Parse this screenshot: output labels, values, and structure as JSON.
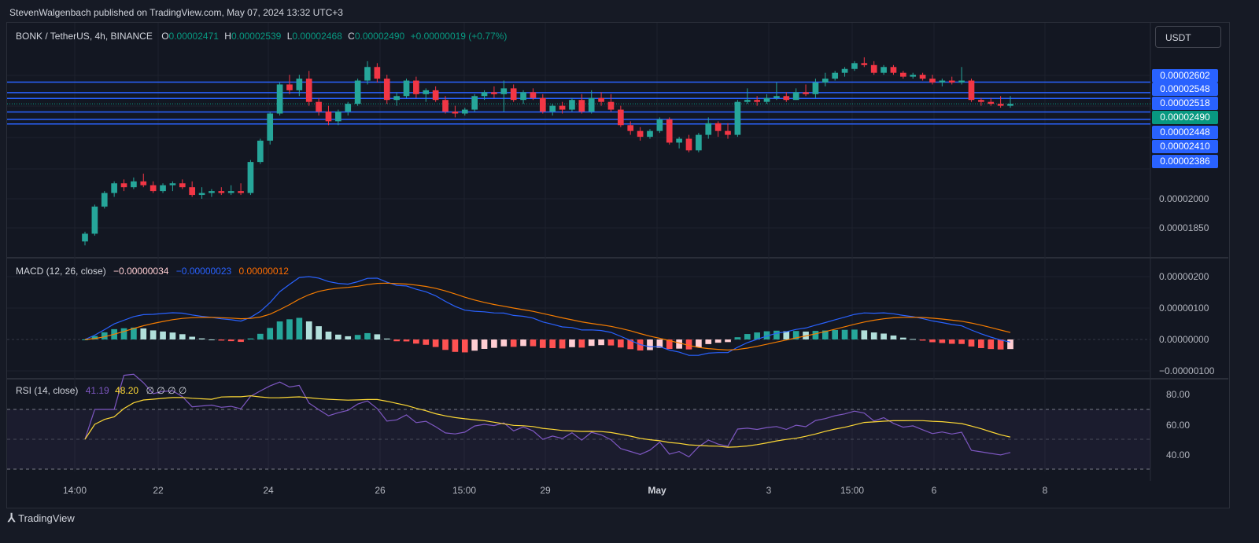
{
  "header": {
    "published": "StevenWalgenbach published on TradingView.com, May 07, 2024 13:32 UTC+3"
  },
  "symbol": {
    "name": "BONK / TetherUS, 4h, BINANCE",
    "o_label": "O",
    "open": "0.00002471",
    "h_label": "H",
    "high": "0.00002539",
    "l_label": "L",
    "low": "0.00002468",
    "c_label": "C",
    "close": "0.00002490",
    "change": "+0.00000019 (+0.77%)"
  },
  "currency_button": "USDT",
  "price_scale": {
    "tags": [
      {
        "value": "0.00002602",
        "color": "#2962ff"
      },
      {
        "value": "0.00002548",
        "color": "#2962ff"
      },
      {
        "value": "0.00002518",
        "color": "#2962ff"
      },
      {
        "value": "0.00002490",
        "color": "#089981"
      },
      {
        "value": "0.00002448",
        "color": "#2962ff"
      },
      {
        "value": "0.00002410",
        "color": "#2962ff"
      },
      {
        "value": "0.00002386",
        "color": "#2962ff"
      }
    ],
    "labels": [
      "0.00002000",
      "0.00001850"
    ]
  },
  "macd": {
    "title": "MACD (12, 26, close)",
    "hist": "−0.00000034",
    "macd": "−0.00000023",
    "signal": "0.00000012",
    "scale": [
      "0.00000200",
      "0.00000100",
      "0.00000000",
      "−0.00000100"
    ]
  },
  "rsi": {
    "title": "RSI (14, close)",
    "rsi": "41.19",
    "ma": "48.20",
    "extra": "∅ ∅ ∅ ∅",
    "scale": [
      "80.00",
      "60.00",
      "40.00"
    ]
  },
  "time_axis": [
    "14:00",
    "22",
    "24",
    "26",
    "15:00",
    "29",
    "May",
    "3",
    "15:00",
    "6",
    "8"
  ],
  "brand": "TradingView",
  "colors": {
    "up": "#26a69a",
    "down": "#f23645",
    "macd": "#2962ff",
    "signal": "#f57c00",
    "rsi": "#7e57c2",
    "rsi_ma": "#fdd835"
  },
  "chart_data": {
    "type": "candlestick",
    "symbol": "BONK / TetherUS",
    "interval": "4h",
    "horizontal_levels": [
      2.602e-05,
      2.548e-05,
      2.518e-05,
      2.448e-05,
      2.41e-05,
      2.386e-05
    ],
    "last_price": 2.49e-05,
    "candles": [
      [
        1.78e-05,
        1.83e-05,
        1.76e-05,
        1.82e-05
      ],
      [
        1.82e-05,
        1.97e-05,
        1.81e-05,
        1.96e-05
      ],
      [
        1.96e-05,
        2.04e-05,
        1.95e-05,
        2.03e-05
      ],
      [
        2.03e-05,
        2.09e-05,
        2.01e-05,
        2.08e-05
      ],
      [
        2.08e-05,
        2.1e-05,
        2.04e-05,
        2.06e-05
      ],
      [
        2.06e-05,
        2.11e-05,
        2.05e-05,
        2.09e-05
      ],
      [
        2.09e-05,
        2.13e-05,
        2.06e-05,
        2.07e-05
      ],
      [
        2.07e-05,
        2.09e-05,
        2.03e-05,
        2.04e-05
      ],
      [
        2.04e-05,
        2.08e-05,
        2.03e-05,
        2.07e-05
      ],
      [
        2.07e-05,
        2.09e-05,
        2.04e-05,
        2.08e-05
      ],
      [
        2.08e-05,
        2.1e-05,
        2.05e-05,
        2.06e-05
      ],
      [
        2.06e-05,
        2.09e-05,
        2.01e-05,
        2.02e-05
      ],
      [
        2.02e-05,
        2.06e-05,
        2e-05,
        2.03e-05
      ],
      [
        2.03e-05,
        2.05e-05,
        2.01e-05,
        2.04e-05
      ],
      [
        2.04e-05,
        2.06e-05,
        2.02e-05,
        2.03e-05
      ],
      [
        2.03e-05,
        2.07e-05,
        2.02e-05,
        2.04e-05
      ],
      [
        2.04e-05,
        2.08e-05,
        2.02e-05,
        2.03e-05
      ],
      [
        2.03e-05,
        2.2e-05,
        2.02e-05,
        2.19e-05
      ],
      [
        2.19e-05,
        2.31e-05,
        2.18e-05,
        2.3e-05
      ],
      [
        2.3e-05,
        2.45e-05,
        2.28e-05,
        2.44e-05
      ],
      [
        2.44e-05,
        2.6e-05,
        2.43e-05,
        2.59e-05
      ],
      [
        2.59e-05,
        2.64e-05,
        2.54e-05,
        2.56e-05
      ],
      [
        2.56e-05,
        2.64e-05,
        2.53e-05,
        2.62e-05
      ],
      [
        2.62e-05,
        2.66e-05,
        2.48e-05,
        2.5e-05
      ],
      [
        2.5e-05,
        2.52e-05,
        2.43e-05,
        2.45e-05
      ],
      [
        2.45e-05,
        2.48e-05,
        2.38e-05,
        2.4e-05
      ],
      [
        2.4e-05,
        2.46e-05,
        2.38e-05,
        2.45e-05
      ],
      [
        2.45e-05,
        2.5e-05,
        2.43e-05,
        2.49e-05
      ],
      [
        2.49e-05,
        2.62e-05,
        2.48e-05,
        2.61e-05
      ],
      [
        2.61e-05,
        2.71e-05,
        2.59e-05,
        2.68e-05
      ],
      [
        2.68e-05,
        2.7e-05,
        2.6e-05,
        2.62e-05
      ],
      [
        2.62e-05,
        2.64e-05,
        2.49e-05,
        2.51e-05
      ],
      [
        2.51e-05,
        2.55e-05,
        2.48e-05,
        2.53e-05
      ],
      [
        2.53e-05,
        2.62e-05,
        2.52e-05,
        2.61e-05
      ],
      [
        2.61e-05,
        2.63e-05,
        2.52e-05,
        2.54e-05
      ],
      [
        2.54e-05,
        2.57e-05,
        2.5e-05,
        2.56e-05
      ],
      [
        2.56e-05,
        2.58e-05,
        2.5e-05,
        2.51e-05
      ],
      [
        2.51e-05,
        2.53e-05,
        2.44e-05,
        2.45e-05
      ],
      [
        2.45e-05,
        2.48e-05,
        2.42e-05,
        2.44e-05
      ],
      [
        2.44e-05,
        2.47e-05,
        2.43e-05,
        2.46e-05
      ],
      [
        2.46e-05,
        2.54e-05,
        2.45e-05,
        2.53e-05
      ],
      [
        2.53e-05,
        2.56e-05,
        2.51e-05,
        2.55e-05
      ],
      [
        2.55e-05,
        2.58e-05,
        2.52e-05,
        2.54e-05
      ],
      [
        2.54e-05,
        2.61e-05,
        2.45e-05,
        2.57e-05
      ],
      [
        2.57e-05,
        2.59e-05,
        2.5e-05,
        2.51e-05
      ],
      [
        2.51e-05,
        2.56e-05,
        2.49e-05,
        2.55e-05
      ],
      [
        2.55e-05,
        2.57e-05,
        2.51e-05,
        2.52e-05
      ],
      [
        2.52e-05,
        2.54e-05,
        2.44e-05,
        2.45e-05
      ],
      [
        2.45e-05,
        2.49e-05,
        2.43e-05,
        2.48e-05
      ],
      [
        2.48e-05,
        2.5e-05,
        2.44e-05,
        2.46e-05
      ],
      [
        2.46e-05,
        2.52e-05,
        2.45e-05,
        2.51e-05
      ],
      [
        2.51e-05,
        2.54e-05,
        2.44e-05,
        2.45e-05
      ],
      [
        2.45e-05,
        2.56e-05,
        2.44e-05,
        2.52e-05
      ],
      [
        2.52e-05,
        2.55e-05,
        2.48e-05,
        2.5e-05
      ],
      [
        2.5e-05,
        2.54e-05,
        2.45e-05,
        2.46e-05
      ],
      [
        2.46e-05,
        2.48e-05,
        2.37e-05,
        2.38e-05
      ],
      [
        2.38e-05,
        2.4e-05,
        2.33e-05,
        2.35e-05
      ],
      [
        2.35e-05,
        2.37e-05,
        2.3e-05,
        2.32e-05
      ],
      [
        2.32e-05,
        2.36e-05,
        2.31e-05,
        2.35e-05
      ],
      [
        2.35e-05,
        2.42e-05,
        2.34e-05,
        2.41e-05
      ],
      [
        2.41e-05,
        2.42e-05,
        2.28e-05,
        2.29e-05
      ],
      [
        2.29e-05,
        2.32e-05,
        2.26e-05,
        2.31e-05
      ],
      [
        2.31e-05,
        2.33e-05,
        2.24e-05,
        2.25e-05
      ],
      [
        2.25e-05,
        2.34e-05,
        2.24e-05,
        2.33e-05
      ],
      [
        2.33e-05,
        2.42e-05,
        2.31e-05,
        2.39e-05
      ],
      [
        2.39e-05,
        2.4e-05,
        2.32e-05,
        2.35e-05
      ],
      [
        2.35e-05,
        2.39e-05,
        2.31e-05,
        2.33e-05
      ],
      [
        2.33e-05,
        2.51e-05,
        2.32e-05,
        2.5e-05
      ],
      [
        2.5e-05,
        2.57e-05,
        2.49e-05,
        2.51e-05
      ],
      [
        2.51e-05,
        2.53e-05,
        2.48e-05,
        2.5e-05
      ],
      [
        2.5e-05,
        2.54e-05,
        2.49e-05,
        2.52e-05
      ],
      [
        2.52e-05,
        2.6e-05,
        2.51e-05,
        2.53e-05
      ],
      [
        2.53e-05,
        2.55e-05,
        2.5e-05,
        2.51e-05
      ],
      [
        2.51e-05,
        2.57e-05,
        2.51e-05,
        2.55e-05
      ],
      [
        2.55e-05,
        2.59e-05,
        2.53e-05,
        2.54e-05
      ],
      [
        2.54e-05,
        2.62e-05,
        2.52e-05,
        2.6e-05
      ],
      [
        2.6e-05,
        2.65e-05,
        2.58e-05,
        2.62e-05
      ],
      [
        2.62e-05,
        2.66e-05,
        2.61e-05,
        2.65e-05
      ],
      [
        2.65e-05,
        2.68e-05,
        2.63e-05,
        2.67e-05
      ],
      [
        2.67e-05,
        2.71e-05,
        2.66e-05,
        2.7e-05
      ],
      [
        2.7e-05,
        2.73e-05,
        2.68e-05,
        2.69e-05
      ],
      [
        2.69e-05,
        2.71e-05,
        2.64e-05,
        2.65e-05
      ],
      [
        2.65e-05,
        2.69e-05,
        2.64e-05,
        2.68e-05
      ],
      [
        2.68e-05,
        2.69e-05,
        2.64e-05,
        2.65e-05
      ],
      [
        2.65e-05,
        2.66e-05,
        2.62e-05,
        2.63e-05
      ],
      [
        2.63e-05,
        2.65e-05,
        2.62e-05,
        2.64e-05
      ],
      [
        2.64e-05,
        2.65e-05,
        2.61e-05,
        2.62e-05
      ],
      [
        2.62e-05,
        2.64e-05,
        2.59e-05,
        2.6e-05
      ],
      [
        2.6e-05,
        2.62e-05,
        2.58e-05,
        2.61e-05
      ],
      [
        2.61e-05,
        2.63e-05,
        2.59e-05,
        2.6e-05
      ],
      [
        2.6e-05,
        2.68e-05,
        2.59e-05,
        2.61e-05
      ],
      [
        2.61e-05,
        2.62e-05,
        2.5e-05,
        2.51e-05
      ],
      [
        2.51e-05,
        2.52e-05,
        2.48e-05,
        2.5e-05
      ],
      [
        2.5e-05,
        2.52e-05,
        2.48e-05,
        2.49e-05
      ],
      [
        2.49e-05,
        2.53e-05,
        2.47e-05,
        2.48e-05
      ],
      [
        2.48e-05,
        2.53e-05,
        2.47e-05,
        2.49e-05
      ]
    ]
  }
}
